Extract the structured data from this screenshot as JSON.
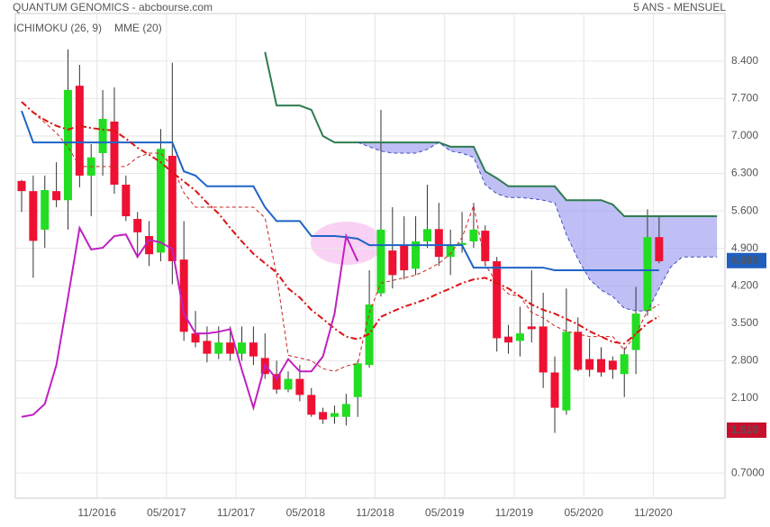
{
  "chart_data": {
    "type": "candlestick",
    "title": "QUANTUM GENOMICS - abcbourse.com",
    "subtitle": "5 ANS - MENSUEL",
    "categories": [
      null,
      null,
      null,
      null,
      null,
      null,
      "11/2016",
      null,
      null,
      null,
      null,
      null,
      "05/2017",
      null,
      null,
      null,
      null,
      null,
      "11/2017",
      null,
      null,
      null,
      null,
      null,
      "05/2018",
      null,
      null,
      null,
      null,
      null,
      "11/2018",
      null,
      null,
      null,
      null,
      null,
      "05/2019",
      null,
      null,
      null,
      null,
      null,
      "11/2019",
      null,
      null,
      null,
      null,
      null,
      "05/2020",
      null,
      null,
      null,
      null,
      null,
      "11/2020",
      null,
      null,
      null,
      null,
      null,
      null
    ],
    "open": [
      6.16,
      5.97,
      5.25,
      5.97,
      5.8,
      7.94,
      6.26,
      6.68,
      7.27,
      6.09,
      5.45,
      5.13,
      4.82,
      6.63,
      4.69,
      3.31,
      3.17,
      2.93,
      3.14,
      2.93,
      3.14,
      2.85,
      2.55,
      2.26,
      2.46,
      2.16,
      1.84,
      1.75,
      1.75,
      2.12,
      2.72,
      4.06,
      4.86,
      4.96,
      4.52,
      5.03,
      5.26,
      4.74,
      4.96,
      5.03,
      5.23,
      4.66,
      3.25,
      3.17,
      3.44,
      3.44,
      2.58,
      1.87,
      3.34,
      2.83,
      2.83,
      2.8,
      2.55,
      3.0,
      3.73,
      5.11,
      null,
      null,
      null,
      null,
      null
    ],
    "high": [
      6.18,
      6.26,
      6.26,
      6.51,
      8.62,
      8.33,
      6.85,
      7.86,
      7.91,
      6.26,
      5.58,
      5.41,
      7.13,
      8.37,
      5.41,
      3.73,
      3.44,
      3.44,
      3.44,
      3.44,
      3.44,
      3.31,
      2.8,
      2.6,
      2.72,
      2.29,
      1.92,
      1.96,
      2.18,
      2.8,
      4.49,
      7.49,
      5.67,
      5.5,
      5.5,
      6.09,
      5.75,
      5.25,
      5.58,
      5.75,
      5.33,
      4.74,
      3.47,
      3.81,
      4.49,
      4.07,
      2.88,
      4.15,
      3.61,
      3.22,
      3.05,
      2.88,
      3.05,
      4.18,
      5.63,
      5.5,
      null,
      null,
      null,
      null,
      null
    ],
    "low": [
      5.58,
      4.35,
      4.91,
      5.67,
      5.25,
      6.04,
      5.5,
      6.26,
      5.92,
      5.41,
      4.74,
      4.57,
      4.66,
      4.23,
      3.17,
      3.05,
      2.77,
      2.83,
      2.8,
      2.8,
      2.72,
      2.46,
      2.18,
      2.21,
      2.04,
      1.75,
      1.62,
      1.62,
      1.59,
      1.75,
      2.67,
      4.0,
      4.15,
      4.32,
      4.4,
      4.91,
      4.57,
      4.4,
      4.82,
      4.91,
      4.57,
      2.97,
      2.93,
      2.88,
      3.14,
      2.29,
      1.45,
      1.79,
      2.6,
      2.5,
      2.5,
      2.46,
      2.12,
      2.55,
      3.64,
      4.62,
      null,
      null,
      null,
      null,
      null
    ],
    "close": [
      5.97,
      5.04,
      5.99,
      5.8,
      7.86,
      6.26,
      6.6,
      7.32,
      6.09,
      5.5,
      5.2,
      4.79,
      6.76,
      4.66,
      3.34,
      3.14,
      2.93,
      3.14,
      2.93,
      3.14,
      2.88,
      2.55,
      2.26,
      2.46,
      2.16,
      1.79,
      1.7,
      1.82,
      1.99,
      2.75,
      3.85,
      5.25,
      4.4,
      4.49,
      5.03,
      5.26,
      4.74,
      4.96,
      5.0,
      5.25,
      4.66,
      3.22,
      3.14,
      3.31,
      3.39,
      2.58,
      1.92,
      3.34,
      2.63,
      2.63,
      2.58,
      2.63,
      2.92,
      3.68,
      5.11,
      4.66,
      null,
      null,
      null,
      null,
      null
    ],
    "up_color": "#22dd22",
    "down_color": "#ee1133",
    "series": [
      {
        "name": "ICHIMOKU (26, 9)",
        "color": "#1e64c8",
        "dash": "solid",
        "values": [
          7.47,
          6.88,
          6.88,
          6.88,
          6.88,
          6.88,
          6.88,
          6.88,
          6.88,
          6.88,
          6.88,
          6.88,
          6.88,
          6.88,
          6.34,
          6.26,
          6.06,
          6.06,
          6.06,
          6.06,
          6.06,
          5.67,
          5.41,
          5.41,
          5.41,
          5.13,
          5.13,
          5.13,
          5.11,
          5.08,
          4.96,
          4.96,
          4.96,
          4.96,
          4.96,
          4.96,
          4.96,
          4.96,
          4.96,
          4.54,
          4.54,
          4.54,
          4.54,
          4.54,
          4.54,
          4.54,
          4.49,
          4.49,
          4.49,
          4.49,
          4.49,
          4.49,
          4.49,
          4.49,
          4.49,
          4.49,
          null,
          null,
          null,
          null,
          null
        ]
      },
      {
        "color": "#2e7d4f",
        "dash": "solid",
        "values": [
          null,
          null,
          null,
          null,
          null,
          null,
          null,
          null,
          null,
          null,
          null,
          null,
          null,
          null,
          null,
          null,
          null,
          null,
          null,
          null,
          null,
          8.57,
          7.57,
          7.57,
          7.57,
          7.49,
          7.0,
          6.88,
          6.88,
          6.88,
          6.88,
          6.88,
          6.88,
          6.88,
          6.88,
          6.88,
          6.88,
          6.8,
          6.8,
          6.8,
          6.34,
          6.21,
          6.06,
          6.06,
          6.06,
          6.06,
          6.06,
          5.8,
          5.8,
          5.8,
          5.8,
          5.72,
          5.5,
          5.5,
          5.5,
          5.5,
          5.5,
          5.5,
          5.5,
          5.5,
          5.5
        ]
      },
      {
        "color": "#3f4fbf",
        "dash": "dashed",
        "values": [
          null,
          null,
          null,
          null,
          null,
          null,
          null,
          null,
          null,
          null,
          null,
          null,
          null,
          null,
          null,
          null,
          null,
          null,
          null,
          null,
          null,
          null,
          null,
          null,
          null,
          null,
          null,
          null,
          null,
          6.88,
          6.8,
          6.72,
          6.68,
          6.68,
          6.68,
          6.75,
          6.88,
          6.72,
          6.68,
          6.6,
          6.09,
          5.92,
          5.85,
          5.85,
          5.83,
          5.8,
          5.75,
          5.16,
          4.7,
          4.32,
          4.12,
          4.0,
          3.78,
          3.73,
          3.73,
          4.15,
          4.55,
          4.74,
          4.74,
          4.74,
          4.74
        ]
      },
      {
        "name": "MME (20)",
        "color": "#dd1111",
        "dash": "dashdot",
        "values": [
          7.64,
          7.44,
          7.3,
          7.19,
          7.12,
          7.19,
          7.15,
          7.12,
          7.1,
          6.95,
          6.78,
          6.65,
          6.51,
          6.32,
          6.15,
          5.98,
          5.75,
          5.55,
          5.28,
          5.03,
          4.8,
          4.62,
          4.45,
          4.15,
          3.98,
          3.75,
          3.58,
          3.4,
          3.25,
          3.2,
          3.3,
          3.62,
          3.72,
          3.81,
          3.88,
          3.96,
          4.06,
          4.15,
          4.25,
          4.32,
          4.35,
          4.25,
          4.15,
          4.0,
          3.85,
          3.75,
          3.68,
          3.58,
          3.48,
          3.35,
          3.25,
          3.15,
          3.12,
          3.3,
          3.5,
          3.63,
          null,
          null,
          null,
          null,
          null
        ]
      },
      {
        "color": "#cc2222",
        "dash": "dashed",
        "values": [
          null,
          7.44,
          7.25,
          7.06,
          6.8,
          6.43,
          6.43,
          6.43,
          6.43,
          6.43,
          6.6,
          6.68,
          6.68,
          6.43,
          5.94,
          5.67,
          5.67,
          5.67,
          5.67,
          5.67,
          5.67,
          5.47,
          4.4,
          2.9,
          2.85,
          2.8,
          2.65,
          2.6,
          2.7,
          2.75,
          3.7,
          4.25,
          4.3,
          4.35,
          4.4,
          4.5,
          4.62,
          4.8,
          5.1,
          5.7,
          4.6,
          4.25,
          4.05,
          4.0,
          3.7,
          3.6,
          3.45,
          3.35,
          3.3,
          3.25,
          3.25,
          3.25,
          3.0,
          3.3,
          3.73,
          3.85,
          null,
          null,
          null,
          null,
          null
        ]
      },
      {
        "color": "#c020c0",
        "dash": "solid",
        "values": [
          1.75,
          1.79,
          1.99,
          2.72,
          3.98,
          5.28,
          4.88,
          4.91,
          5.13,
          5.16,
          4.74,
          5.06,
          5.01,
          4.89,
          3.68,
          3.31,
          3.31,
          3.34,
          3.39,
          2.63,
          1.92,
          2.72,
          2.46,
          2.83,
          2.6,
          2.6,
          2.88,
          3.68,
          5.13,
          4.66,
          null,
          null,
          null,
          null,
          null,
          null,
          null,
          null,
          null,
          null,
          null,
          null,
          null,
          null,
          null,
          null,
          null,
          null,
          null,
          null,
          null,
          null,
          null,
          null,
          null,
          null,
          null,
          null,
          null,
          null,
          null
        ]
      }
    ],
    "cloud_color": "#9c9cf0",
    "ylim": [
      0.23,
      9.29
    ],
    "yticks": [
      {
        "value": 0.7,
        "label": "0.7000"
      },
      {
        "value": 2.1,
        "label": "2.100"
      },
      {
        "value": 2.8,
        "label": "2.800"
      },
      {
        "value": 3.5,
        "label": "3.500"
      },
      {
        "value": 4.2,
        "label": "4.200"
      },
      {
        "value": 4.9,
        "label": "4.900"
      },
      {
        "value": 5.6,
        "label": "5.600"
      },
      {
        "value": 6.3,
        "label": "6.300"
      },
      {
        "value": 7.0,
        "label": "7.000"
      },
      {
        "value": 7.7,
        "label": "7.700"
      },
      {
        "value": 8.4,
        "label": "8.400"
      }
    ],
    "price_badges": [
      {
        "value": 4.68,
        "label": "4.680",
        "color": "#1f5fbf"
      },
      {
        "value": 1.51,
        "label": "1.510",
        "color": "#c8102e"
      }
    ],
    "grid": true
  }
}
